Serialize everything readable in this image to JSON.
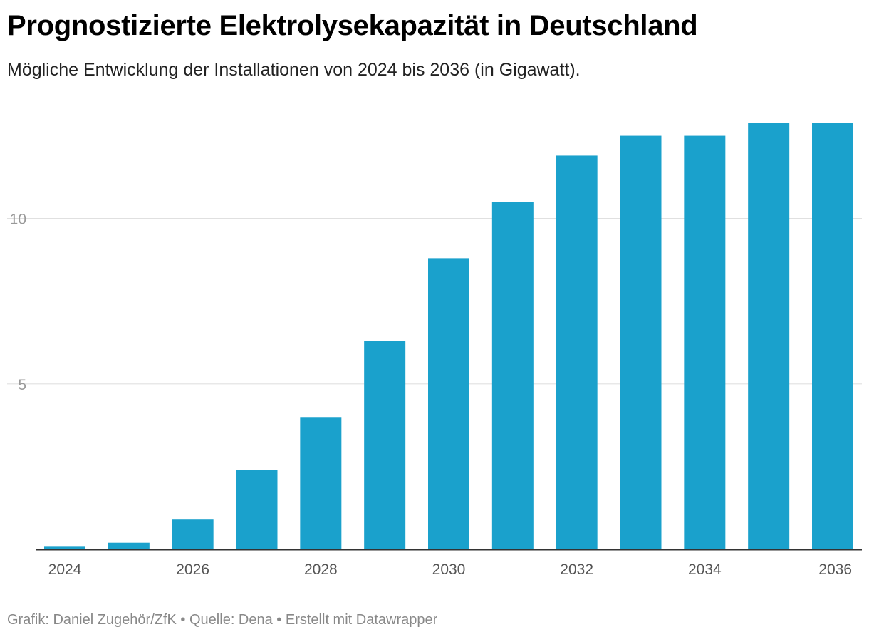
{
  "header": {
    "title": "Prognostizierte Elektrolysekapazität in Deutschland",
    "subtitle": "Mögliche Entwicklung der Installationen von 2024 bis 2036 (in Gigawatt)."
  },
  "footer": {
    "credit": "Grafik: Daniel Zugehör/ZfK",
    "separator_1": " • ",
    "source": "Quelle: Dena",
    "separator_2": " • ",
    "tool": "Erstellt mit Datawrapper"
  },
  "colors": {
    "bar": "#1aa1cc",
    "grid": "#e0e0e0",
    "axis": "#333333",
    "tick_label": "#999999",
    "x_tick_label": "#555555"
  },
  "chart_data": {
    "type": "bar",
    "title": "Prognostizierte Elektrolysekapazität in Deutschland",
    "subtitle": "Mögliche Entwicklung der Installationen von 2024 bis 2036 (in Gigawatt).",
    "xlabel": "",
    "ylabel": "",
    "unit": "Gigawatt",
    "categories": [
      "2024",
      "2025",
      "2026",
      "2027",
      "2028",
      "2029",
      "2030",
      "2031",
      "2032",
      "2033",
      "2034",
      "2035",
      "2036"
    ],
    "values": [
      0.1,
      0.2,
      0.9,
      2.4,
      4.0,
      6.3,
      8.8,
      10.5,
      11.9,
      12.5,
      12.5,
      12.9,
      12.9
    ],
    "x_tick_labels": [
      "2024",
      "2026",
      "2028",
      "2030",
      "2032",
      "2034",
      "2036"
    ],
    "y_ticks": [
      5,
      10
    ],
    "ylim": [
      0,
      12.9
    ],
    "grid": true,
    "legend": "none"
  }
}
